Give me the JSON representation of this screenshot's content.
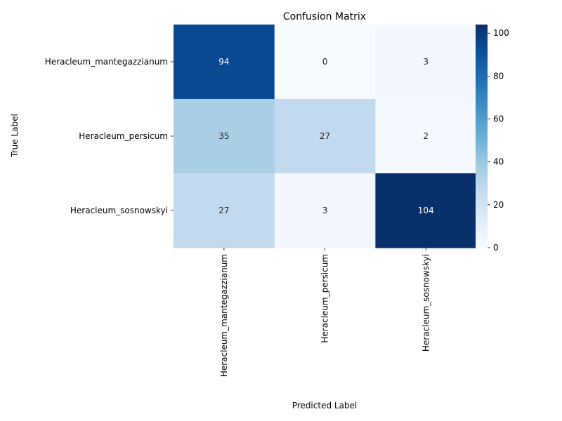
{
  "chart_data": {
    "type": "heatmap",
    "title": "Confusion Matrix",
    "xlabel": "Predicted Label",
    "ylabel": "True Label",
    "x_categories": [
      "Heracleum_mantegazzianum",
      "Heracleum_persicum",
      "Heracleum_sosnowskyi"
    ],
    "y_categories": [
      "Heracleum_mantegazzianum",
      "Heracleum_persicum",
      "Heracleum_sosnowskyi"
    ],
    "values": [
      [
        94,
        0,
        3
      ],
      [
        35,
        27,
        2
      ],
      [
        27,
        3,
        104
      ]
    ],
    "colormap": "Blues",
    "colorbar": {
      "min": 0,
      "max": 104,
      "ticks": [
        0,
        20,
        40,
        60,
        80,
        100
      ]
    }
  }
}
